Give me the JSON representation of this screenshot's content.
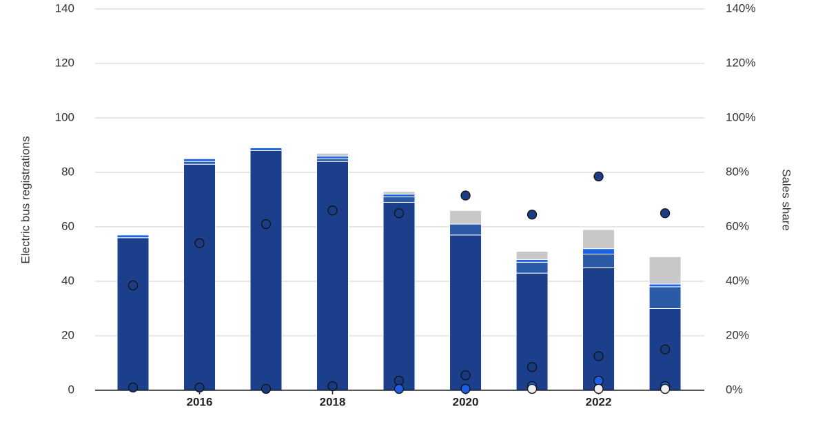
{
  "chart_data": {
    "type": "bar",
    "y_label": "Electric bus registrations",
    "y2_label": "Sales share",
    "x": [
      2015,
      2016,
      2017,
      2018,
      2019,
      2020,
      2021,
      2022,
      2023
    ],
    "xlim": [
      2014.43,
      2023.59
    ],
    "xticks": [
      2016,
      2018,
      2020,
      2022
    ],
    "ylim": [
      0,
      140
    ],
    "yticks": [
      0,
      20,
      40,
      60,
      80,
      100,
      120,
      140
    ],
    "y2lim": [
      0,
      140
    ],
    "y2ticks": [
      {
        "value": 0,
        "label": "0%"
      },
      {
        "value": 20,
        "label": "20%"
      },
      {
        "value": 40,
        "label": "40%"
      },
      {
        "value": 60,
        "label": "60%"
      },
      {
        "value": 80,
        "label": "80%"
      },
      {
        "value": 100,
        "label": "100%"
      },
      {
        "value": 120,
        "label": "120%"
      },
      {
        "value": 140,
        "label": "140%"
      }
    ],
    "grid": true,
    "stacked": true,
    "series": [
      {
        "color": "#1b3f8b",
        "values": [
          56,
          83,
          88,
          84,
          69,
          57,
          43,
          45,
          30
        ]
      },
      {
        "color": "#2b5aa6",
        "values": [
          null,
          1,
          null,
          1,
          2,
          4,
          4,
          5,
          8
        ]
      },
      {
        "color": "#1e63e6",
        "values": [
          1,
          1,
          1,
          1,
          1,
          null,
          1,
          2,
          1
        ]
      },
      {
        "color": "#c8c8c8",
        "values": [
          null,
          null,
          null,
          1,
          1,
          5,
          3,
          7,
          10
        ]
      },
      {
        "type": "scatter",
        "axis": "y2",
        "color": "#1c3d85",
        "values": [
          38.5,
          54,
          61,
          66,
          65,
          71.5,
          64.5,
          78.5,
          65
        ]
      },
      {
        "type": "scatter",
        "axis": "y2",
        "color": "#1a3a80",
        "values": [
          1,
          1,
          0.5,
          1.5,
          3.5,
          5.5,
          8.5,
          12.5,
          15
        ]
      },
      {
        "type": "scatter",
        "axis": "y2",
        "color": "#1d5fe0",
        "values": [
          null,
          null,
          null,
          null,
          0.5,
          0.5,
          1.5,
          3.5,
          1.5
        ]
      },
      {
        "type": "scatter",
        "axis": "y2",
        "color": "#eeeeee",
        "values": [
          null,
          null,
          null,
          null,
          null,
          null,
          0.5,
          0.5,
          0.5
        ]
      }
    ]
  }
}
